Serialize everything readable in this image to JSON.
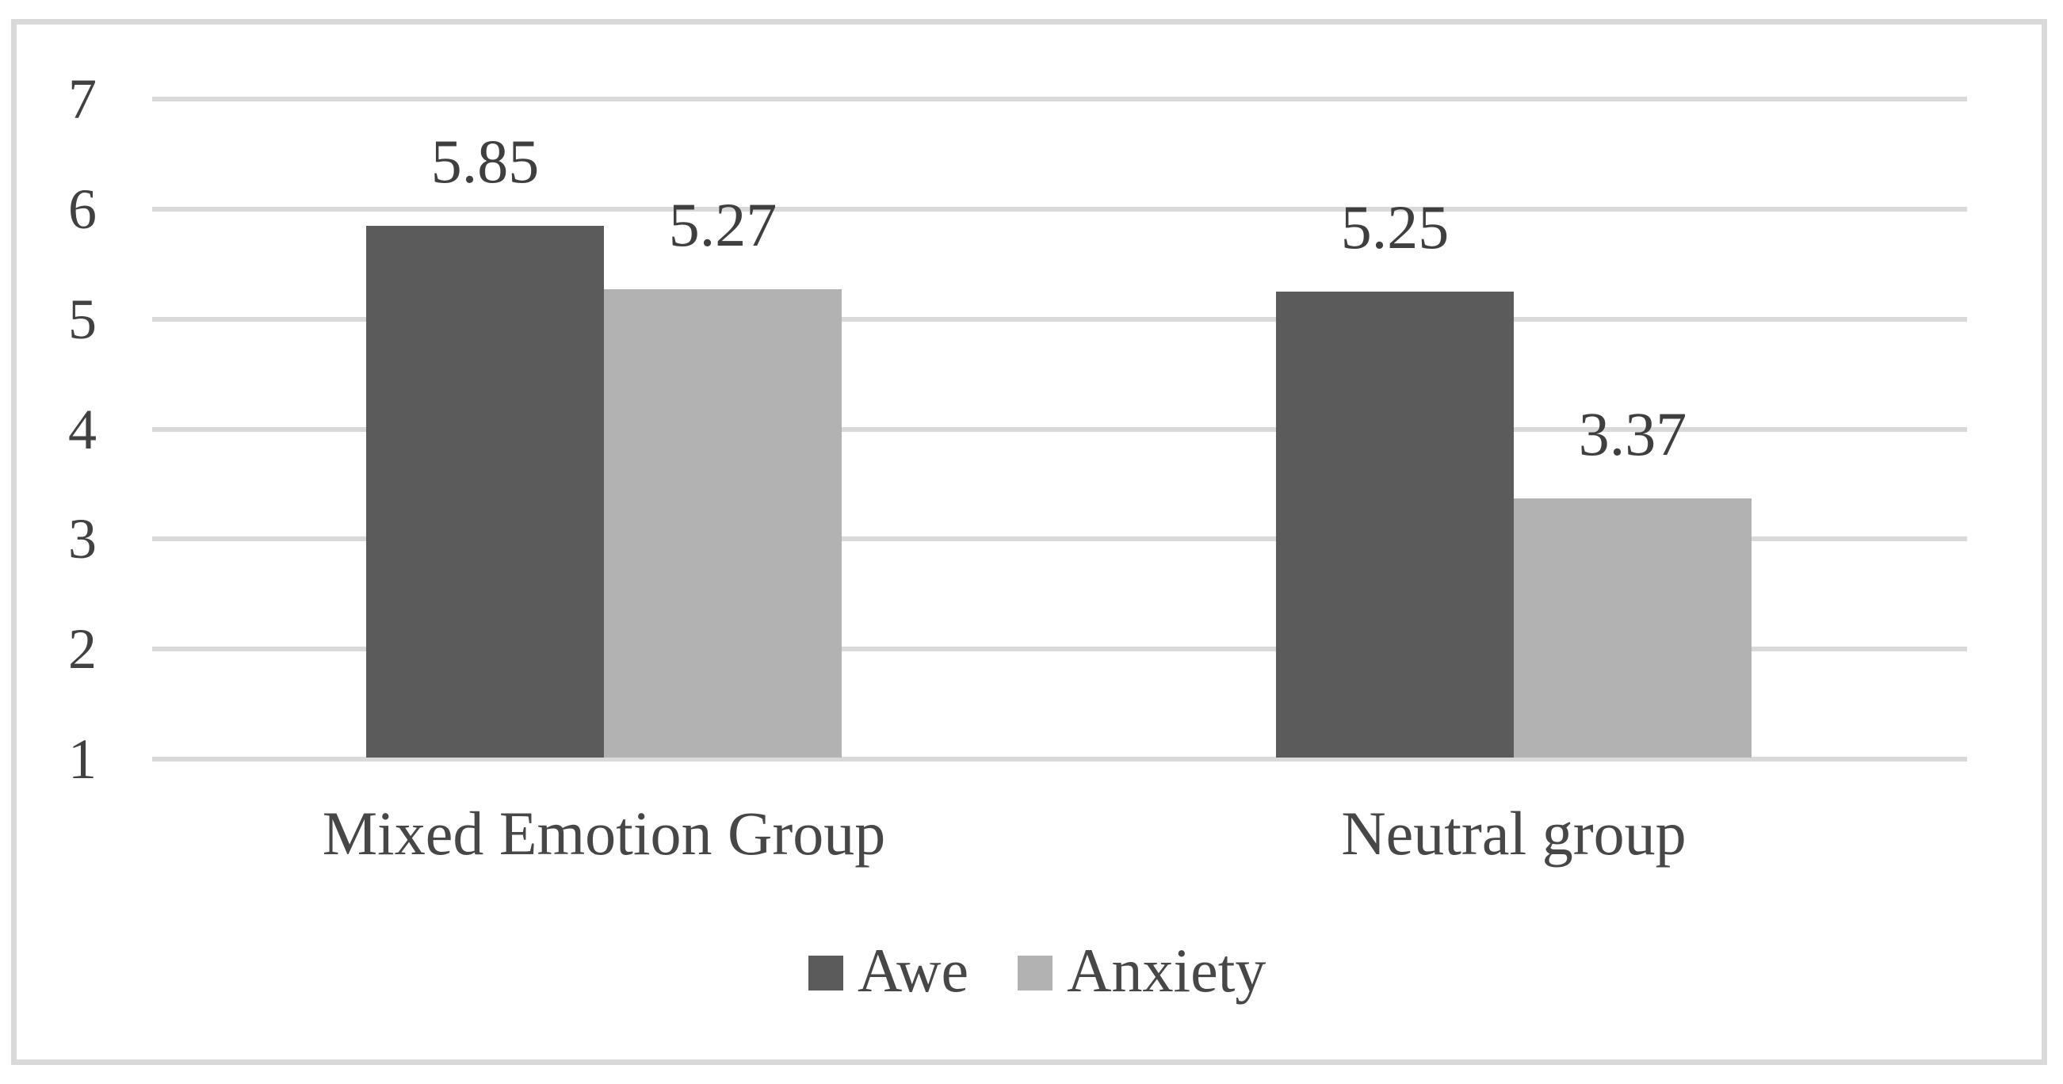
{
  "figure": {
    "description": "Grouped bar chart comparing Awe and Anxiety ratings for two experimental groups"
  },
  "chart_data": {
    "type": "bar",
    "categories": [
      "Mixed Emotion Group",
      "Neutral group"
    ],
    "series": [
      {
        "name": "Awe",
        "values": [
          5.85,
          5.25
        ]
      },
      {
        "name": "Anxiety",
        "values": [
          5.27,
          3.37
        ]
      }
    ],
    "value_labels": [
      "5.85",
      "5.27",
      "5.25",
      "3.37"
    ],
    "title": "",
    "xlabel": "",
    "ylabel": "",
    "ylim": [
      1,
      7
    ],
    "yticks": [
      7,
      6,
      5,
      4,
      3,
      2,
      1
    ],
    "grid": true,
    "legend_position": "bottom-center"
  },
  "colors": {
    "awe_bar": "#5b5b5b",
    "anxiety_bar": "#b2b2b2",
    "gridline": "#d9d9d9",
    "frame_border": "#d9d9d9",
    "text": "#3f3f3f"
  }
}
